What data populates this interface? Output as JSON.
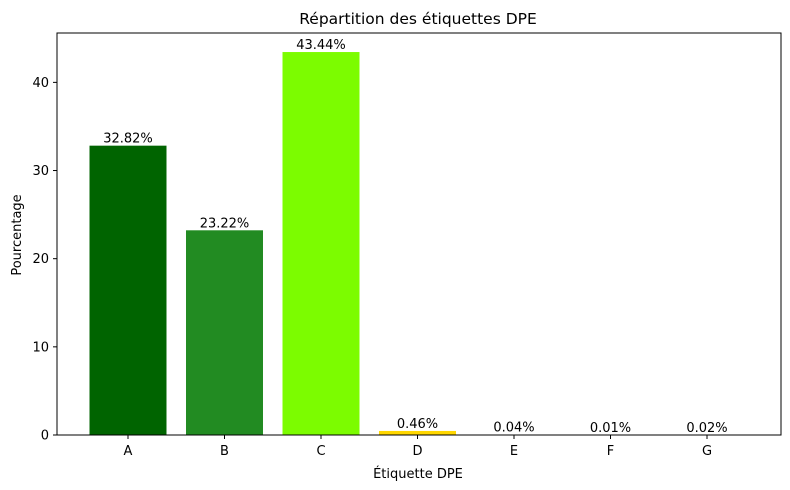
{
  "chart_data": {
    "type": "bar",
    "title": "Répartition des étiquettes DPE",
    "xlabel": "Étiquette DPE",
    "ylabel": "Pourcentage",
    "categories": [
      "A",
      "B",
      "C",
      "D",
      "E",
      "F",
      "G"
    ],
    "values": [
      32.82,
      23.22,
      43.44,
      0.46,
      0.04,
      0.01,
      0.02
    ],
    "data_labels": [
      "32.82%",
      "23.22%",
      "43.44%",
      "0.46%",
      "0.04%",
      "0.01%",
      "0.02%"
    ],
    "colors": [
      "#006400",
      "#228B22",
      "#7CFC00",
      "#FFD700",
      "#FFA500",
      "#FF4500",
      "#FF0000"
    ],
    "ylim": [
      0,
      45.6
    ],
    "yticks": [
      0,
      10,
      20,
      30,
      40
    ],
    "grid": false,
    "legend": "none"
  }
}
